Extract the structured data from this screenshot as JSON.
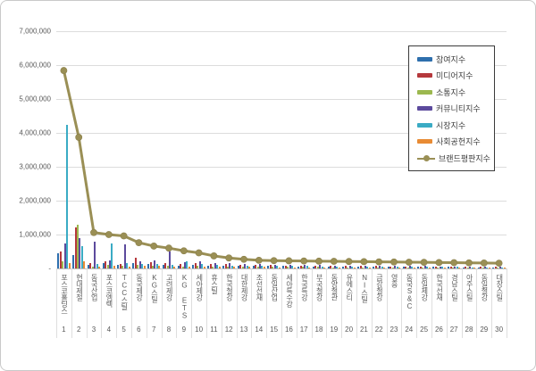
{
  "chart_data": {
    "type": "bar",
    "title": "",
    "categories": [
      "포스코홀딩스",
      "현대제철",
      "동국산업",
      "포스코엠텍",
      "TCC스틸",
      "동국제강",
      "KG스틸",
      "고려제강",
      "KG ETS",
      "세아제강",
      "휴스틸",
      "한국철강",
      "대한제강",
      "조선선재",
      "동일산업",
      "세아특수강",
      "한국특강",
      "부국철강",
      "동양철관",
      "유에스티",
      "NI스틸",
      "금강철강",
      "영흥",
      "동국S&C",
      "동일제강",
      "한국선재",
      "경남스틸",
      "아주스틸",
      "동일철강",
      "대창스틸"
    ],
    "ranks": [
      "1",
      "2",
      "3",
      "4",
      "5",
      "6",
      "7",
      "8",
      "9",
      "10",
      "11",
      "12",
      "13",
      "14",
      "15",
      "16",
      "17",
      "18",
      "19",
      "20",
      "21",
      "22",
      "23",
      "24",
      "25",
      "26",
      "27",
      "28",
      "29",
      "30"
    ],
    "bar_series": [
      {
        "name": "참여지수",
        "color": "#2e6fad",
        "values": [
          450000,
          400000,
          100000,
          150000,
          100000,
          150000,
          120000,
          100000,
          90000,
          100000,
          90000,
          80000,
          80000,
          70000,
          70000,
          70000,
          60000,
          60000,
          60000,
          50000,
          50000,
          50000,
          50000,
          40000,
          40000,
          40000,
          40000,
          30000,
          30000,
          30000
        ]
      },
      {
        "name": "미디어지수",
        "color": "#b5383c",
        "values": [
          500000,
          1200000,
          150000,
          200000,
          140000,
          320000,
          180000,
          150000,
          130000,
          160000,
          140000,
          120000,
          110000,
          100000,
          100000,
          90000,
          90000,
          80000,
          80000,
          80000,
          70000,
          70000,
          60000,
          60000,
          60000,
          50000,
          50000,
          50000,
          40000,
          40000
        ]
      },
      {
        "name": "소통지수",
        "color": "#9cb84f",
        "values": [
          200000,
          1300000,
          60000,
          100000,
          70000,
          100000,
          80000,
          70000,
          60000,
          80000,
          60000,
          60000,
          50000,
          50000,
          40000,
          40000,
          40000,
          40000,
          30000,
          30000,
          30000,
          30000,
          30000,
          20000,
          20000,
          20000,
          20000,
          20000,
          20000,
          20000
        ]
      },
      {
        "name": "커뮤니티지수",
        "color": "#5c4a9d",
        "values": [
          750000,
          900000,
          800000,
          250000,
          700000,
          200000,
          250000,
          500000,
          180000,
          210000,
          160000,
          150000,
          140000,
          120000,
          110000,
          110000,
          100000,
          100000,
          90000,
          90000,
          80000,
          80000,
          70000,
          70000,
          70000,
          60000,
          60000,
          60000,
          50000,
          50000
        ]
      },
      {
        "name": "시장지수",
        "color": "#3aabc4",
        "values": [
          4250000,
          650000,
          120000,
          750000,
          150000,
          140000,
          130000,
          110000,
          220000,
          130000,
          100000,
          90000,
          90000,
          80000,
          80000,
          70000,
          70000,
          60000,
          60000,
          60000,
          50000,
          50000,
          50000,
          40000,
          40000,
          40000,
          40000,
          30000,
          30000,
          30000
        ]
      },
      {
        "name": "사회공헌지수",
        "color": "#e88b34",
        "values": [
          150000,
          200000,
          50000,
          80000,
          60000,
          80000,
          70000,
          60000,
          50000,
          60000,
          50000,
          40000,
          40000,
          40000,
          30000,
          30000,
          30000,
          30000,
          30000,
          20000,
          20000,
          20000,
          20000,
          20000,
          20000,
          20000,
          15000,
          15000,
          15000,
          15000
        ]
      }
    ],
    "line_series": {
      "name": "브랜드평판지수",
      "color": "#9a8f55",
      "values": [
        5840000,
        3870000,
        1060000,
        1000000,
        960000,
        760000,
        660000,
        600000,
        520000,
        460000,
        370000,
        310000,
        270000,
        240000,
        230000,
        225000,
        220000,
        215000,
        210000,
        205000,
        200000,
        195000,
        190000,
        185000,
        180000,
        175000,
        170000,
        165000,
        160000,
        155000
      ]
    },
    "y_axis": {
      "max": 7000000,
      "interval": 1000000,
      "ticks": [
        {
          "label": "7,000,000",
          "value": 7000000
        },
        {
          "label": "6,000,000",
          "value": 6000000
        },
        {
          "label": "5,000,000",
          "value": 5000000
        },
        {
          "label": "4,000,000",
          "value": 4000000
        },
        {
          "label": "3,000,000",
          "value": 3000000
        },
        {
          "label": "2,000,000",
          "value": 2000000
        },
        {
          "label": "1,000,000",
          "value": 1000000
        },
        {
          "label": "-",
          "value": 0
        }
      ]
    },
    "legend": {
      "position": "right",
      "border": true
    },
    "grid": true
  }
}
